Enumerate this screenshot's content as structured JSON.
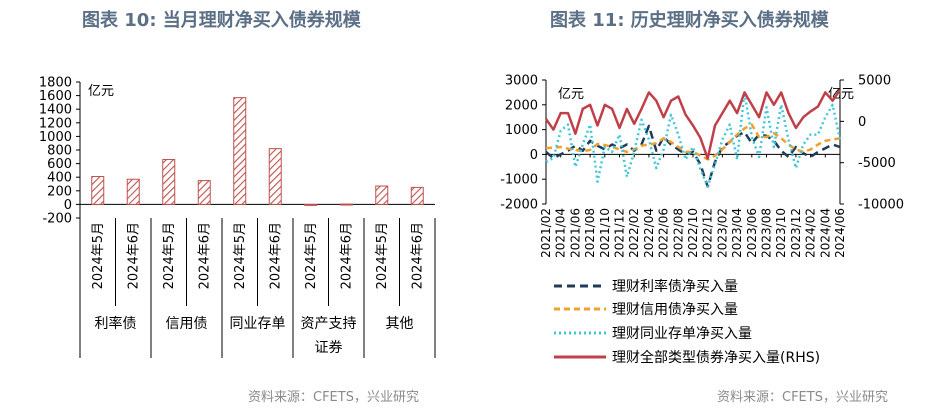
{
  "left": {
    "title": "图表 10: 当月理财净买入债券规模",
    "source": "资料来源：CFETS，兴业研究"
  },
  "right": {
    "title": "图表 11: 历史理财净买入债券规模",
    "source": "资料来源：CFETS，兴业研究"
  },
  "colors": {
    "title": "#5b6f86",
    "hatch": "#c0504d",
    "rate_bond": "#1f3c5a",
    "credit_bond": "#f0a030",
    "ncd": "#40c8d8",
    "total": "#c0404a"
  },
  "chart_data": [
    {
      "type": "bar",
      "title": "",
      "unit_label": "亿元",
      "ylim": [
        -200,
        1800
      ],
      "yticks": [
        -200,
        0,
        200,
        400,
        600,
        800,
        1000,
        1200,
        1400,
        1600,
        1800
      ],
      "bar_style": "hatched",
      "categories": [
        "2024年5月",
        "2024年6月",
        "2024年5月",
        "2024年6月",
        "2024年5月",
        "2024年6月",
        "2024年5月",
        "2024年6月",
        "2024年5月",
        "2024年6月"
      ],
      "values": [
        410,
        370,
        660,
        350,
        1570,
        820,
        -10,
        5,
        270,
        250
      ],
      "groups": [
        {
          "label": "利率债"
        },
        {
          "label": "信用债"
        },
        {
          "label": "同业存单"
        },
        {
          "label": "资产支持证券",
          "lines": [
            "资产支持",
            "证券"
          ]
        },
        {
          "label": "其他"
        }
      ]
    },
    {
      "type": "line",
      "title": "",
      "left_unit_label": "亿元",
      "right_unit_label": "亿元",
      "ylim": [
        -2000,
        3000
      ],
      "yticks": [
        -2000,
        -1000,
        0,
        1000,
        2000,
        3000
      ],
      "y2lim": [
        -10000,
        5000
      ],
      "y2ticks": [
        -10000,
        -5000,
        0,
        5000
      ],
      "x": [
        "2021/02",
        "2021/03",
        "2021/04",
        "2021/05",
        "2021/06",
        "2021/07",
        "2021/08",
        "2021/09",
        "2021/10",
        "2021/11",
        "2021/12",
        "2022/01",
        "2022/02",
        "2022/03",
        "2022/04",
        "2022/05",
        "2022/06",
        "2022/07",
        "2022/08",
        "2022/09",
        "2022/10",
        "2022/11",
        "2022/12",
        "2023/01",
        "2023/02",
        "2023/03",
        "2023/04",
        "2023/05",
        "2023/06",
        "2023/07",
        "2023/08",
        "2023/09",
        "2023/10",
        "2023/11",
        "2023/12",
        "2024/01",
        "2024/02",
        "2024/03",
        "2024/04",
        "2024/05",
        "2024/06"
      ],
      "xtick_labels": [
        "2021/02",
        "2021/04",
        "2021/06",
        "2021/08",
        "2021/10",
        "2021/12",
        "2022/02",
        "2022/04",
        "2022/06",
        "2022/08",
        "2022/10",
        "2022/12",
        "2023/02",
        "2023/04",
        "2023/06",
        "2023/08",
        "2023/10",
        "2023/12",
        "2024/02",
        "2024/04",
        "2024/06"
      ],
      "series": [
        {
          "name": "理财利率债净买入量",
          "axis": "left",
          "style": "dashed",
          "values": [
            100,
            -150,
            0,
            150,
            350,
            150,
            550,
            350,
            200,
            400,
            250,
            400,
            150,
            400,
            1150,
            150,
            700,
            400,
            200,
            0,
            100,
            -400,
            -1300,
            -300,
            300,
            500,
            750,
            900,
            450,
            800,
            750,
            550,
            150,
            -100,
            300,
            50,
            -100,
            100,
            250,
            400,
            300
          ]
        },
        {
          "name": "理财信用债净买入量",
          "axis": "left",
          "style": "dashed",
          "values": [
            250,
            280,
            300,
            230,
            180,
            120,
            180,
            420,
            380,
            300,
            200,
            100,
            200,
            350,
            400,
            450,
            650,
            500,
            300,
            100,
            100,
            -50,
            -200,
            -50,
            200,
            500,
            800,
            1050,
            1200,
            700,
            700,
            850,
            650,
            400,
            200,
            100,
            200,
            400,
            550,
            600,
            650
          ]
        },
        {
          "name": "理财同业存单净买入量",
          "axis": "left",
          "style": "dotted",
          "values": [
            -300,
            -150,
            950,
            1200,
            -500,
            400,
            1200,
            -1100,
            300,
            100,
            800,
            -900,
            100,
            1400,
            600,
            -550,
            200,
            1600,
            800,
            -200,
            300,
            -600,
            -1300,
            -400,
            600,
            1200,
            -200,
            2500,
            700,
            -100,
            1900,
            300,
            2000,
            600,
            -550,
            400,
            800,
            800,
            1500,
            2000,
            600
          ]
        },
        {
          "name": "理财全部类型债券净买入量(RHS)",
          "axis": "right",
          "style": "solid",
          "values": [
            300,
            -1000,
            1000,
            1000,
            -1500,
            1500,
            2000,
            -500,
            2000,
            1500,
            -800,
            1500,
            -300,
            1500,
            3500,
            2500,
            500,
            2500,
            3000,
            800,
            -500,
            -2000,
            -4500,
            -500,
            1000,
            2500,
            1000,
            3500,
            2000,
            500,
            3500,
            2000,
            3500,
            1000,
            -800,
            500,
            1200,
            1800,
            3500,
            2500,
            3800
          ]
        }
      ]
    }
  ]
}
